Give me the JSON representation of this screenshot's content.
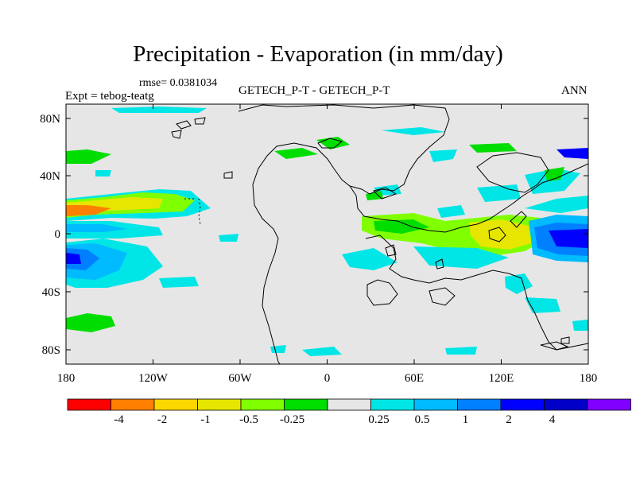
{
  "title": "Precipitation - Evaporation (in mm/day)",
  "rmse_label": "rmse= 0.0381034",
  "experiment_label": "Expt = tebog-teatg",
  "field_label": "GETECH_P-T - GETECH_P-T",
  "season_label": "ANN",
  "x_ticks": [
    "180",
    "120W",
    "60W",
    "0",
    "60E",
    "120E",
    "180"
  ],
  "y_ticks": [
    "80N",
    "40N",
    "0",
    "40S",
    "80S"
  ],
  "colorbar": {
    "colors": [
      "#ff0000",
      "#ff8000",
      "#ffd700",
      "#e6e600",
      "#80ff00",
      "#00dd00",
      "#e6e6e6",
      "#00e6e6",
      "#00bbff",
      "#0080ff",
      "#0000ff",
      "#0000c8",
      "#8000ff"
    ],
    "labels": [
      "-4",
      "-2",
      "-1",
      "-0.5",
      "-0.25",
      "0.25",
      "0.5",
      "1",
      "2",
      "4"
    ]
  },
  "colors": {
    "background": "#e6e6e6",
    "coast": "#000000"
  }
}
